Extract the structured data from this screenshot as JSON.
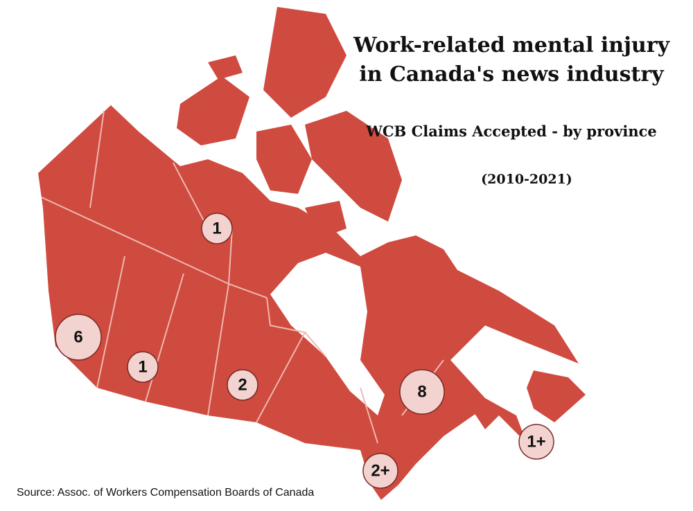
{
  "title_lines": [
    "Work-related mental injury",
    "in Canada's news industry"
  ],
  "subtitle": "WCB Claims Accepted - by province",
  "period": "(2010-2021)",
  "markers": [
    {
      "region": "Northwest Territories",
      "label": "1"
    },
    {
      "region": "British Columbia",
      "label": "6"
    },
    {
      "region": "Alberta",
      "label": "1"
    },
    {
      "region": "Saskatchewan",
      "label": "2"
    },
    {
      "region": "Quebec",
      "label": "8"
    },
    {
      "region": "Ontario",
      "label": "2+"
    },
    {
      "region": "Atlantic",
      "label": "1+"
    }
  ],
  "source": "Source: Assoc. of Workers Compensation Boards of Canada"
}
